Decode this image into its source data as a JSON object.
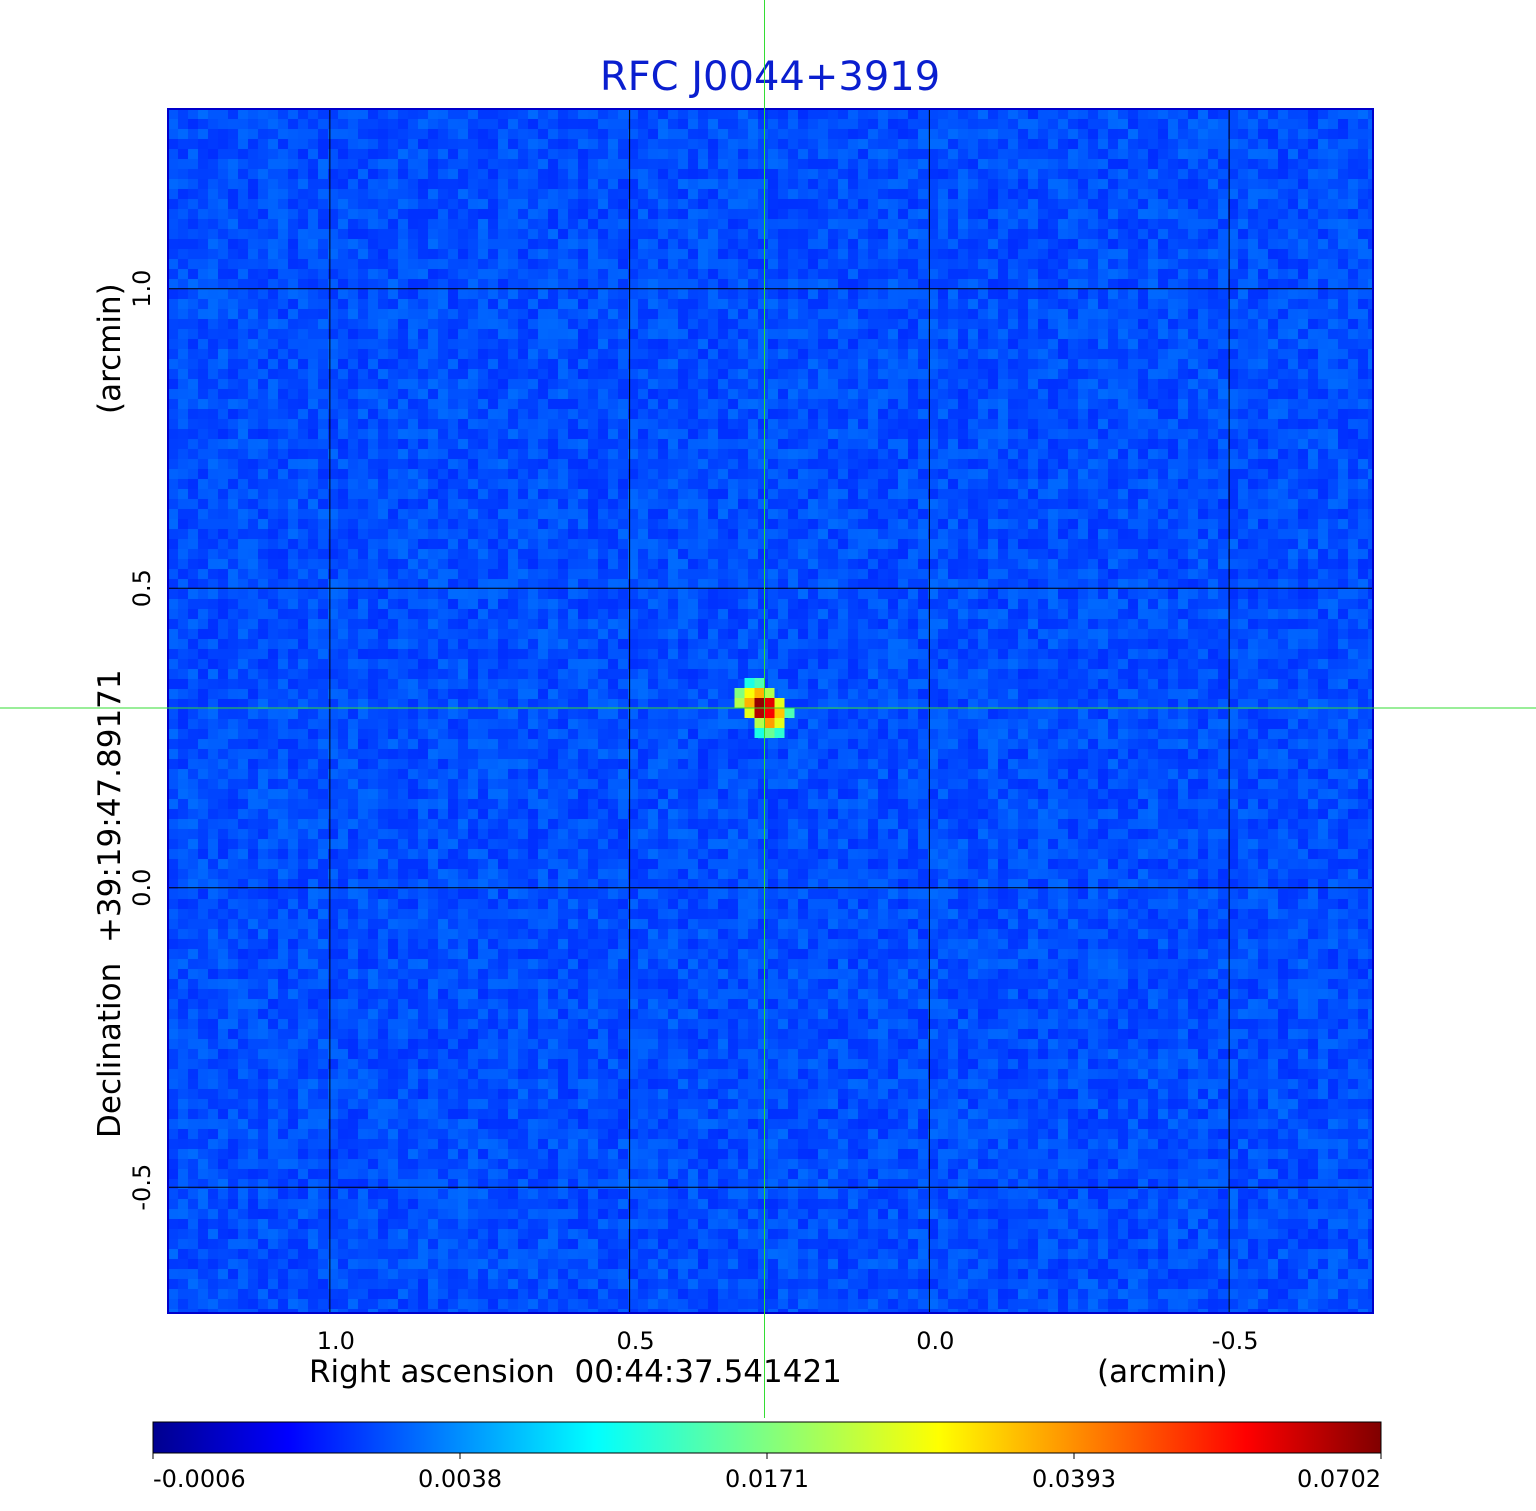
{
  "chart_data": {
    "type": "heatmap",
    "title": "RFC J0044+3919",
    "title_color": "#0a1ecf",
    "xlabel": "Right ascension  00:44:37.541421",
    "xlabel_unit": "(arcmin)",
    "ylabel": "Declination  +39:19:47.89171",
    "ylabel_unit": "(arcmin)",
    "x_axis": {
      "range": [
        1.27,
        -0.74
      ],
      "ticks": [
        1.0,
        0.5,
        0.0,
        -0.5
      ],
      "tick_labels": [
        "1.0",
        "0.5",
        "0.0",
        "-0.5"
      ],
      "grid": true
    },
    "y_axis": {
      "range": [
        -0.71,
        1.3
      ],
      "ticks": [
        -0.5,
        0.0,
        0.5,
        1.0
      ],
      "tick_labels": [
        "-0.5",
        "0.0",
        "0.5",
        "1.0"
      ],
      "grid": true
    },
    "background_level": 0.0008,
    "source": {
      "x": 0.275,
      "y": 0.3,
      "peak": 0.0702
    },
    "crosshair": {
      "x": 0.275,
      "y": 0.3,
      "color": "#33dd33"
    },
    "colormap": "jet",
    "colorbar": {
      "placement": "bottom",
      "ticks": [
        -0.0006,
        0.0038,
        0.0171,
        0.0393,
        0.0702
      ],
      "tick_labels": [
        "-0.0006",
        "0.0038",
        "0.0171",
        "0.0393",
        "0.0702"
      ]
    }
  }
}
